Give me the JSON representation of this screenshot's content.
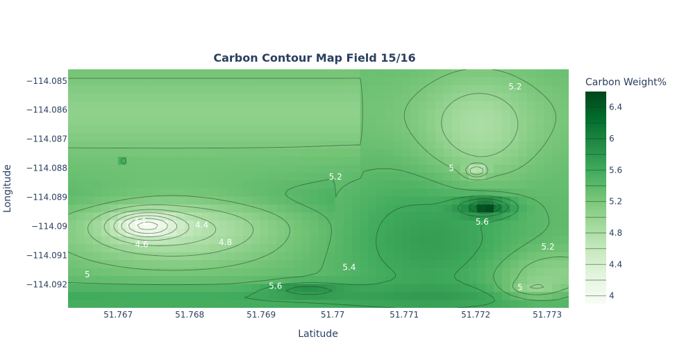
{
  "chart_data": {
    "type": "heatmap",
    "subtype": "contour",
    "title": "Carbon Contour Map Field 15/16",
    "xlabel": "Latitude",
    "ylabel": "Longitude",
    "xlim": [
      51.7663,
      51.7733
    ],
    "ylim": [
      -114.0928,
      -114.0846
    ],
    "x_ticks": [
      51.767,
      51.768,
      51.769,
      51.77,
      51.771,
      51.772,
      51.773
    ],
    "x_tick_labels": [
      "51.767",
      "51.768",
      "51.769",
      "51.77",
      "51.771",
      "51.772",
      "51.773"
    ],
    "y_ticks": [
      -114.085,
      -114.086,
      -114.087,
      -114.088,
      -114.089,
      -114.09,
      -114.091,
      -114.092
    ],
    "y_tick_labels": [
      "−114.085",
      "−114.086",
      "−114.087",
      "−114.088",
      "−114.089",
      "−114.09",
      "−114.091",
      "−114.092"
    ],
    "colorbar": {
      "title": "Carbon Weight%",
      "range": [
        3.9,
        6.6
      ],
      "ticks": [
        4,
        4.4,
        4.8,
        5.2,
        5.6,
        6,
        6.4
      ],
      "tick_labels": [
        "4",
        "4.4",
        "4.8",
        "5.2",
        "5.6",
        "6",
        "6.4"
      ],
      "colorscale": "Greens",
      "color_low": "#f7fcf5",
      "color_high": "#00441b"
    },
    "contour_levels": [
      4,
      4.2,
      4.4,
      4.6,
      4.8,
      5,
      5.2,
      5.4,
      5.6,
      5.8,
      6,
      6.2,
      6.4
    ],
    "features": [
      {
        "kind": "low",
        "x": 51.7673,
        "y": -114.0898,
        "value": 4.2
      },
      {
        "kind": "high",
        "x": 51.7721,
        "y": -114.0893,
        "value": 6.4
      },
      {
        "kind": "low",
        "x": 51.7721,
        "y": -114.0881,
        "value": 4.8
      },
      {
        "kind": "high",
        "x": 51.7692,
        "y": -114.0921,
        "value": 5.8
      },
      {
        "kind": "high",
        "x": 51.7673,
        "y": -114.0877,
        "value": 5.6
      }
    ],
    "contour_labels": [
      {
        "text": "5.2",
        "x": 51.77255,
        "y": -114.0852
      },
      {
        "text": "5.2",
        "x": 51.77004,
        "y": -114.0883
      },
      {
        "text": "5",
        "x": 51.77166,
        "y": -114.088
      },
      {
        "text": "5.6",
        "x": 51.77209,
        "y": -114.08985
      },
      {
        "text": "4.2",
        "x": 51.76731,
        "y": -114.08985
      },
      {
        "text": "4.4",
        "x": 51.76817,
        "y": -114.08995
      },
      {
        "text": "4.6",
        "x": 51.76733,
        "y": -114.09062
      },
      {
        "text": "4.8",
        "x": 51.7685,
        "y": -114.09055
      },
      {
        "text": "5",
        "x": 51.76657,
        "y": -114.09165
      },
      {
        "text": "5.4",
        "x": 51.77023,
        "y": -114.0914
      },
      {
        "text": "5.6",
        "x": 51.7692,
        "y": -114.09205
      },
      {
        "text": "5.2",
        "x": 51.77301,
        "y": -114.0907
      },
      {
        "text": "5",
        "x": 51.77262,
        "y": -114.0921
      }
    ]
  }
}
